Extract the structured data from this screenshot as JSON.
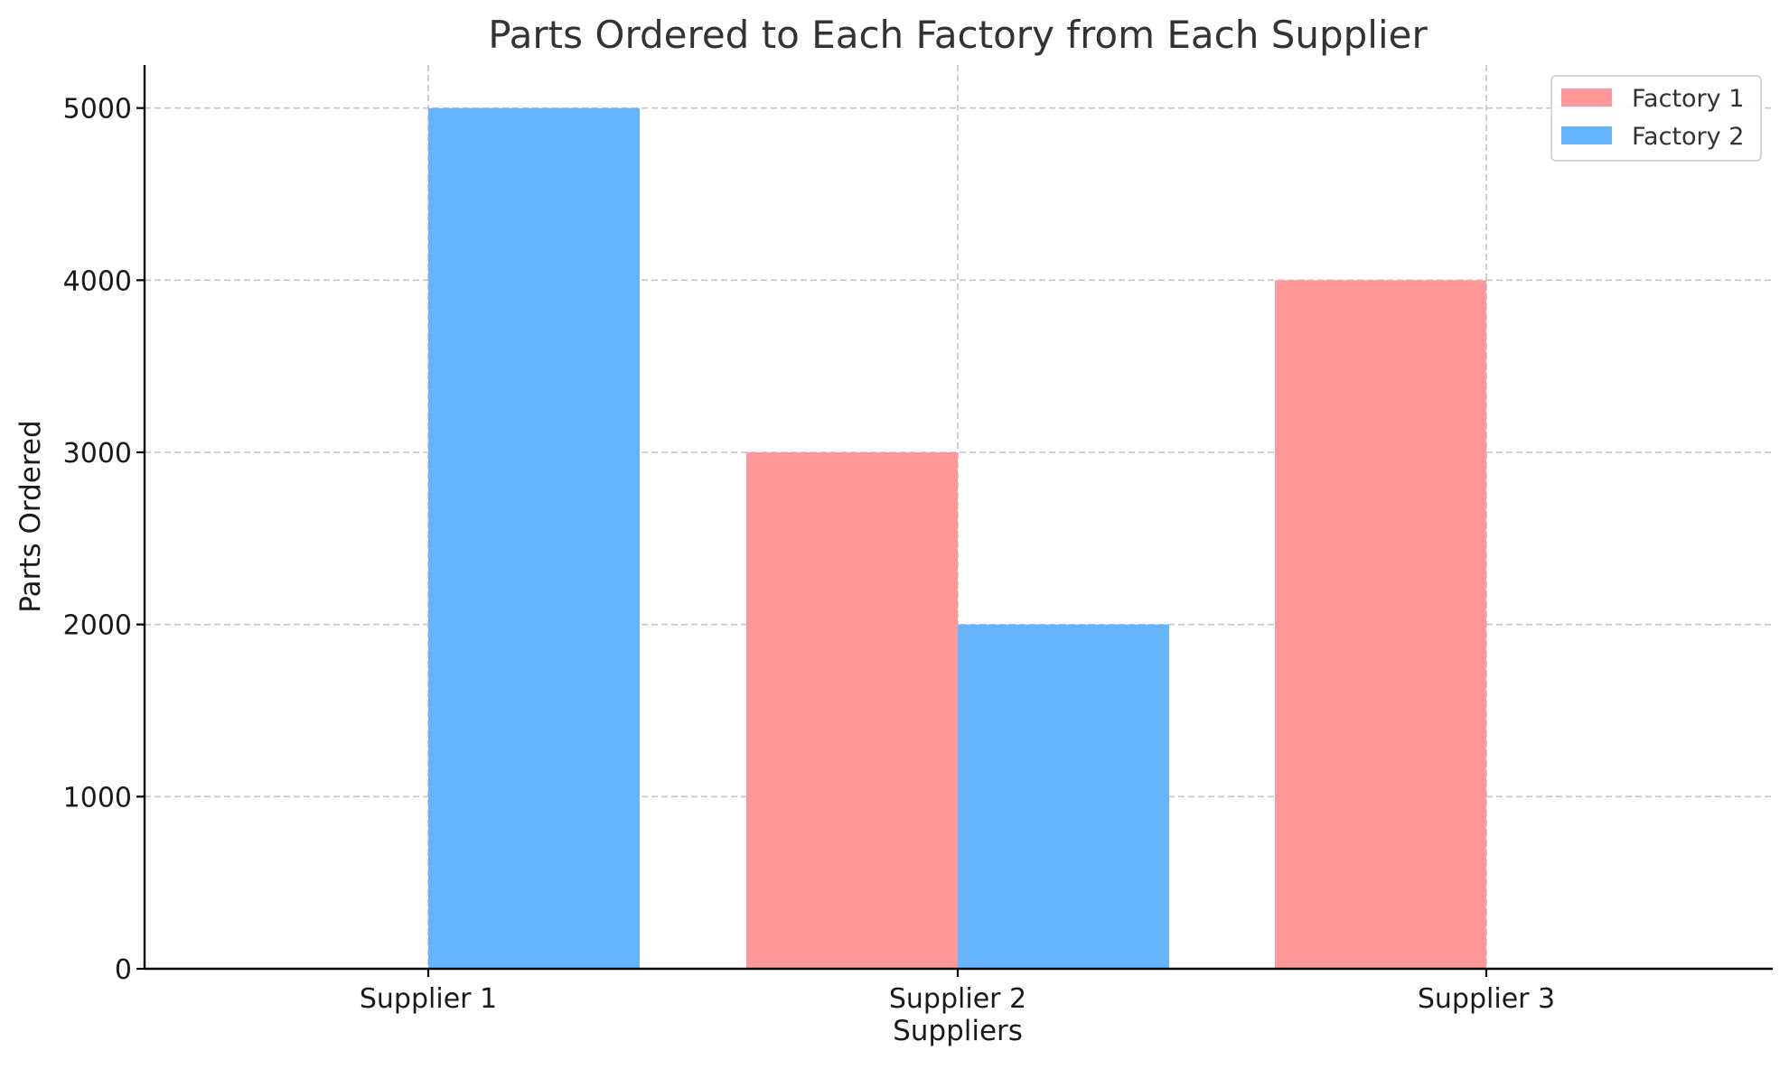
{
  "chart_data": {
    "type": "bar",
    "title": "Parts Ordered to Each Factory from Each Supplier",
    "xlabel": "Suppliers",
    "ylabel": "Parts Ordered",
    "categories": [
      "Supplier 1",
      "Supplier 2",
      "Supplier 3"
    ],
    "series": [
      {
        "name": "Factory 1",
        "values": [
          0,
          3000,
          4000
        ],
        "color": "#ff9999"
      },
      {
        "name": "Factory 2",
        "values": [
          5000,
          2000,
          0
        ],
        "color": "#66b3ff"
      }
    ],
    "ylim": [
      0,
      5250
    ],
    "yticks": [
      0,
      1000,
      2000,
      3000,
      4000,
      5000
    ],
    "grid": true,
    "legend_position": "top-right"
  }
}
